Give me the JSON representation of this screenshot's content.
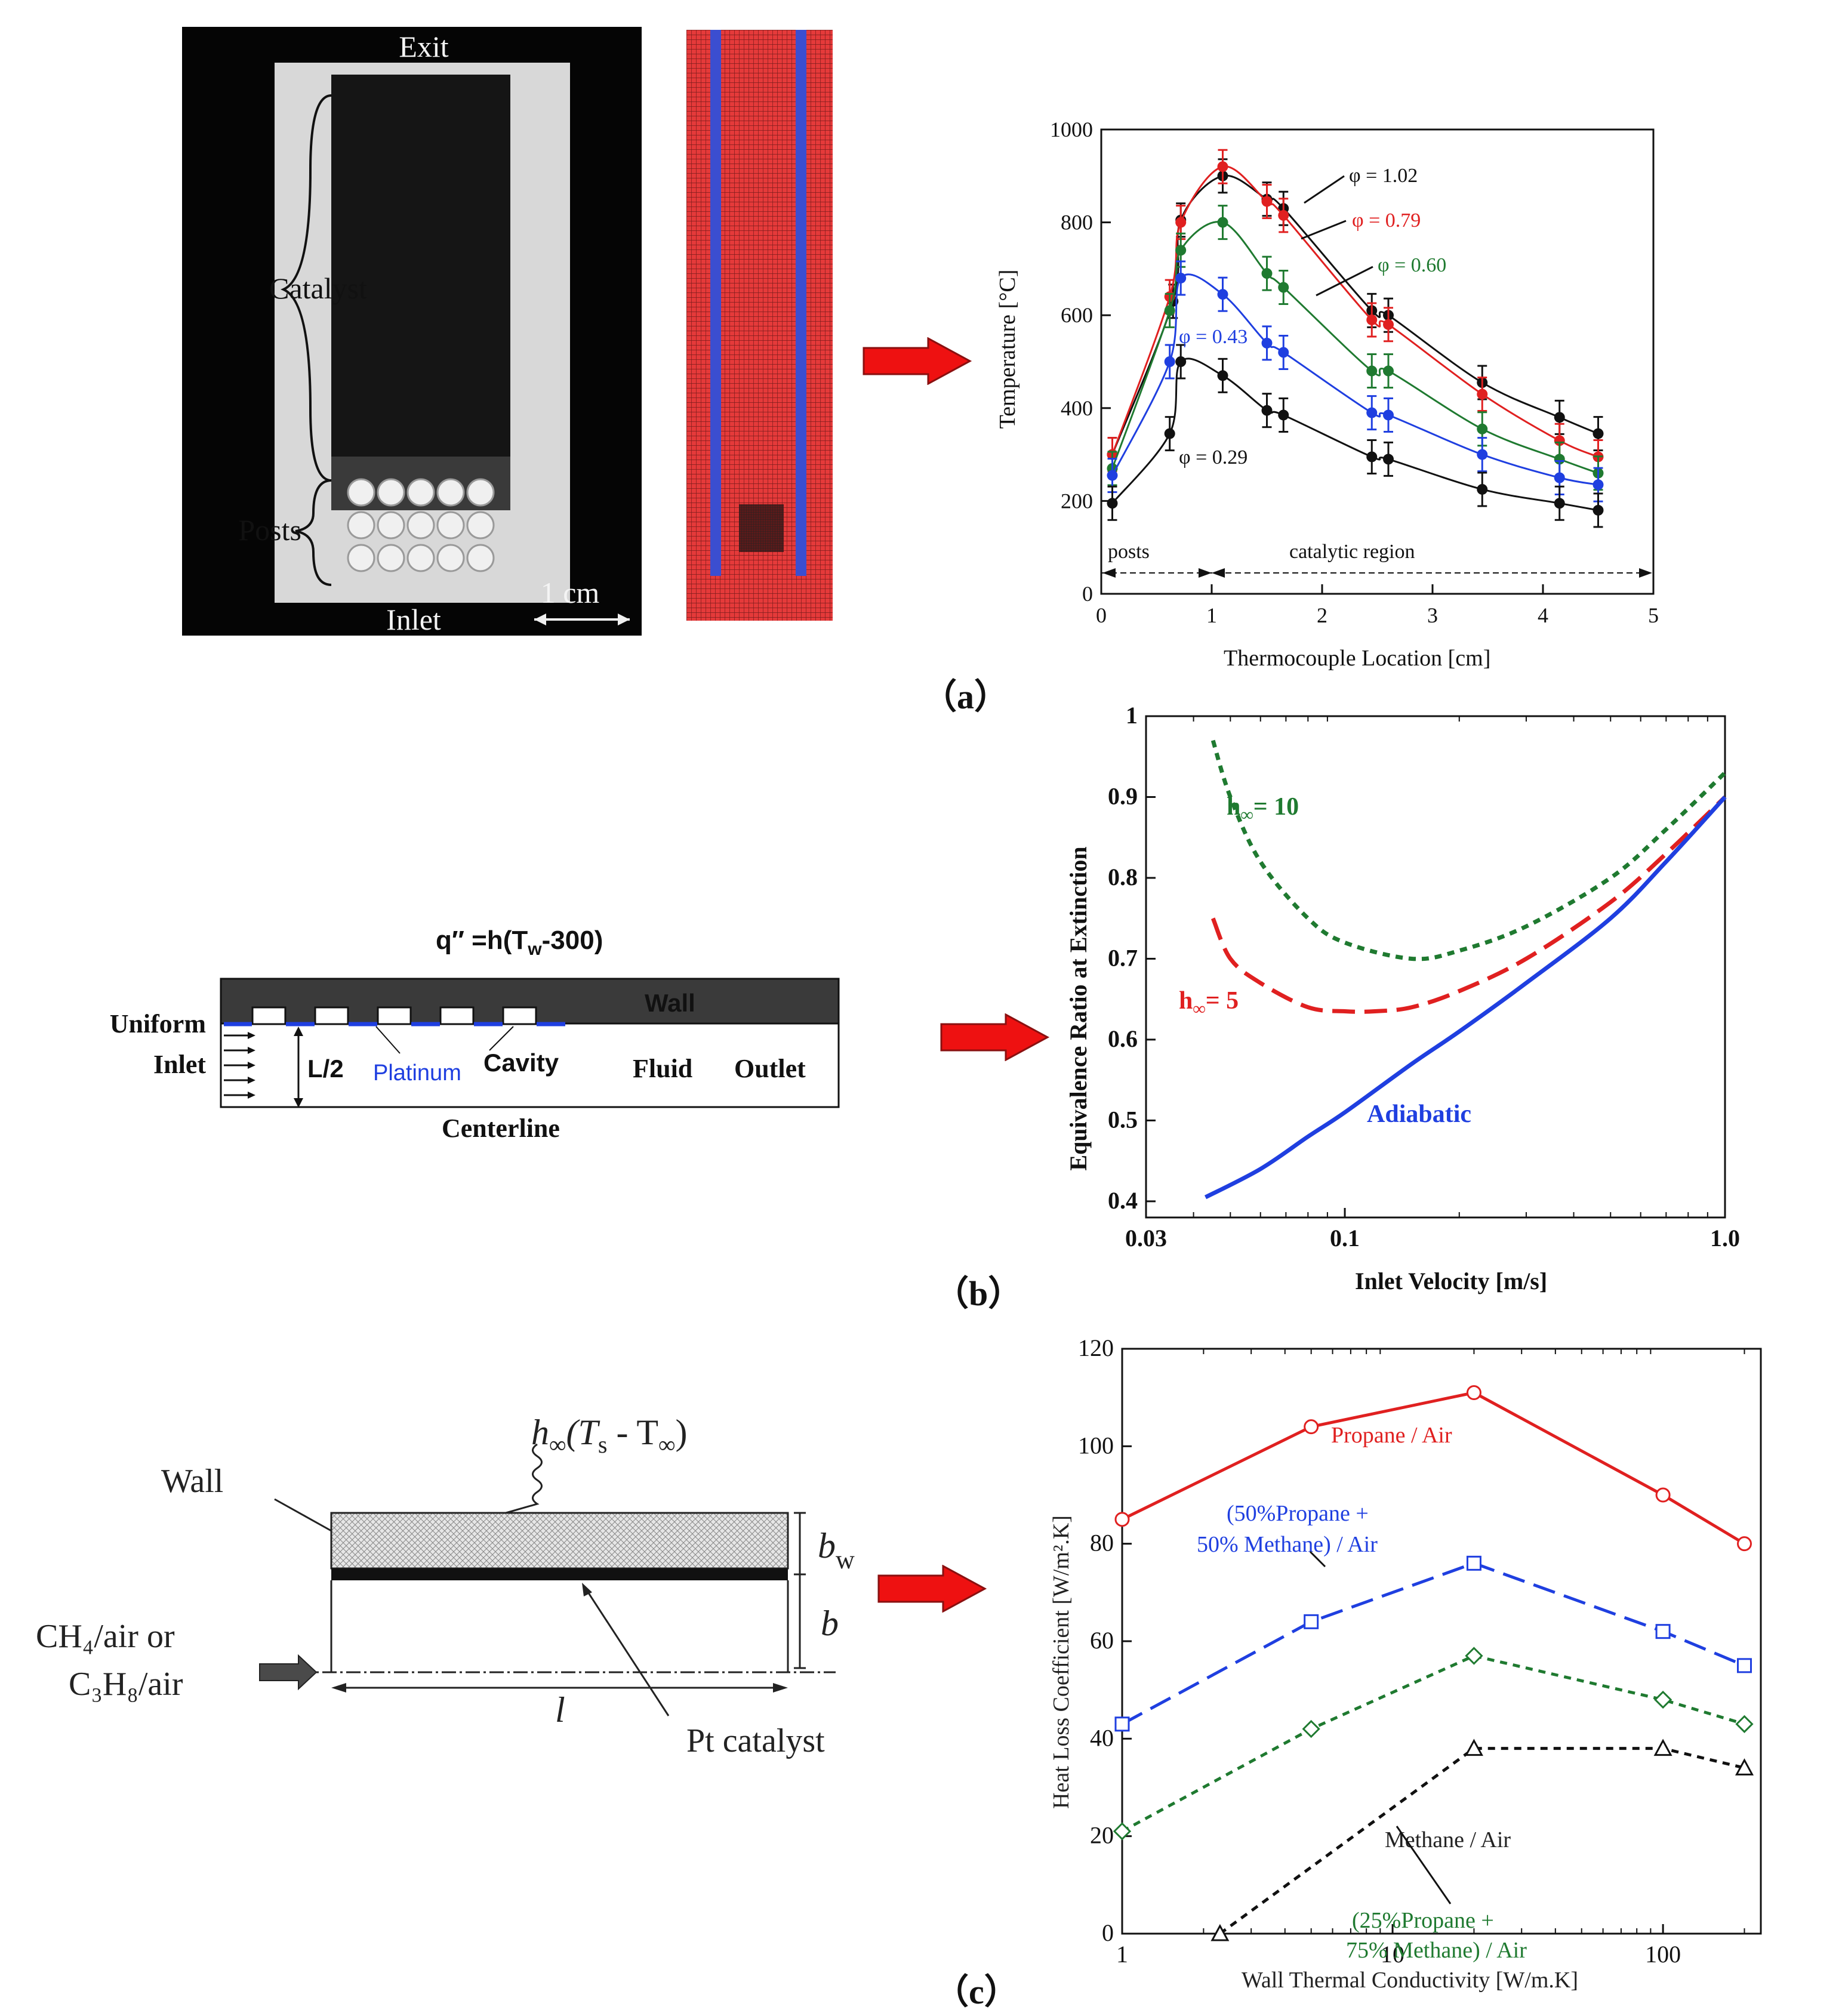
{
  "panel_a": {
    "photo": {
      "exit": "Exit",
      "catalyst": "Catalyst",
      "posts": "Posts",
      "inlet": "Inlet",
      "scale": "1 cm"
    },
    "caption": "（a）"
  },
  "panel_b": {
    "schematic": {
      "flux": "q″ =h(T",
      "flux_sub": "w",
      "flux_end": "-300)",
      "wall": "Wall",
      "uniform": "Uniform",
      "inlet": "Inlet",
      "half_width": "L/2",
      "platinum": "Platinum",
      "cavity": "Cavity",
      "fluid": "Fluid",
      "outlet": "Outlet",
      "centerline": "Centerline"
    },
    "caption": "（b）"
  },
  "panel_c": {
    "schematic": {
      "h_inf": "h",
      "h_inf_sub": "∞",
      "h_expr": "(T",
      "ts_sub": "s",
      "minus": " - T",
      "tinf_sub": "∞",
      "close": ")",
      "wall": "Wall",
      "bw": "b",
      "bw_sub": "w",
      "b": "b",
      "l": "l",
      "inlet_line1": "CH₄/air or",
      "inlet_line2": "C₃H₈/air",
      "pt": "Pt catalyst"
    },
    "caption": "（c）"
  },
  "colors": {
    "black": "#111111",
    "red": "#e02020",
    "green": "#1f7a30",
    "blue": "#1f3fe0",
    "arrow": "#ee1111"
  },
  "chart_data": [
    {
      "type": "line",
      "title": "",
      "xlabel": "Thermocouple Location [cm]",
      "ylabel": "Temperature [°C]",
      "xlim": [
        0,
        5
      ],
      "ylim": [
        0,
        1000
      ],
      "xticks": [
        "0",
        "1",
        "2",
        "3",
        "4",
        "5"
      ],
      "yticks": [
        "0",
        "200",
        "400",
        "600",
        "800",
        "1000"
      ],
      "region_labels": [
        "posts",
        "catalytic region"
      ],
      "series": [
        {
          "name": "φ = 1.02",
          "color": "#111111",
          "x": [
            0.1,
            0.65,
            0.72,
            1.1,
            1.5,
            1.65,
            2.45,
            2.6,
            3.45,
            4.15,
            4.5
          ],
          "y": [
            300,
            630,
            805,
            900,
            850,
            830,
            610,
            600,
            455,
            380,
            345
          ]
        },
        {
          "name": "φ = 0.79",
          "color": "#e02020",
          "x": [
            0.1,
            0.62,
            0.72,
            1.1,
            1.5,
            1.65,
            2.45,
            2.6,
            3.45,
            4.15,
            4.5
          ],
          "y": [
            300,
            640,
            800,
            920,
            845,
            815,
            590,
            580,
            430,
            330,
            295
          ]
        },
        {
          "name": "φ = 0.60",
          "color": "#1f7a30",
          "x": [
            0.1,
            0.62,
            0.72,
            1.1,
            1.5,
            1.65,
            2.45,
            2.6,
            3.45,
            4.15,
            4.5
          ],
          "y": [
            270,
            610,
            740,
            800,
            690,
            660,
            480,
            480,
            355,
            290,
            260
          ]
        },
        {
          "name": "φ = 0.43",
          "color": "#1f3fe0",
          "x": [
            0.1,
            0.62,
            0.72,
            1.1,
            1.5,
            1.65,
            2.45,
            2.6,
            3.45,
            4.15,
            4.5
          ],
          "y": [
            255,
            500,
            680,
            645,
            540,
            520,
            390,
            385,
            300,
            250,
            235
          ]
        },
        {
          "name": "φ = 0.29",
          "color": "#111111",
          "x": [
            0.1,
            0.62,
            0.72,
            1.1,
            1.5,
            1.65,
            2.45,
            2.6,
            3.45,
            4.15,
            4.5
          ],
          "y": [
            195,
            345,
            500,
            470,
            395,
            385,
            295,
            290,
            225,
            195,
            180
          ]
        }
      ]
    },
    {
      "type": "line",
      "xlabel": "Inlet Velocity [m/s]",
      "ylabel": "Equivalence Ratio at Extinction",
      "xscale": "log",
      "xlim": [
        0.03,
        1.0
      ],
      "ylim": [
        0.38,
        1.0
      ],
      "xticks": [
        "0.03",
        "0.1",
        "1.0"
      ],
      "yticks": [
        "0.4",
        "0.5",
        "0.6",
        "0.7",
        "0.8",
        "0.9",
        "1"
      ],
      "series": [
        {
          "name": "h∞= 10",
          "label_main": "h",
          "label_sub": "∞",
          "label_end": "= 10",
          "color": "#1f7a30",
          "style": "dotted",
          "x": [
            0.045,
            0.05,
            0.06,
            0.08,
            0.1,
            0.15,
            0.2,
            0.3,
            0.5,
            0.7,
            1.0
          ],
          "y": [
            0.97,
            0.9,
            0.82,
            0.75,
            0.72,
            0.7,
            0.71,
            0.74,
            0.8,
            0.86,
            0.93
          ]
        },
        {
          "name": "h∞= 5",
          "label_main": "h",
          "label_sub": "∞",
          "label_end": "= 5",
          "color": "#e02020",
          "style": "dashed",
          "x": [
            0.045,
            0.05,
            0.06,
            0.08,
            0.1,
            0.12,
            0.15,
            0.2,
            0.3,
            0.5,
            0.7,
            1.0
          ],
          "y": [
            0.75,
            0.7,
            0.67,
            0.64,
            0.635,
            0.635,
            0.64,
            0.66,
            0.7,
            0.77,
            0.83,
            0.9
          ]
        },
        {
          "name": "Adiabatic",
          "color": "#1f3fe0",
          "style": "solid",
          "x": [
            0.043,
            0.06,
            0.08,
            0.1,
            0.15,
            0.2,
            0.3,
            0.5,
            0.7,
            1.0
          ],
          "y": [
            0.405,
            0.44,
            0.48,
            0.51,
            0.57,
            0.61,
            0.67,
            0.75,
            0.82,
            0.9
          ]
        }
      ]
    },
    {
      "type": "line",
      "xlabel": "Wall Thermal Conductivity [W/m.K]",
      "ylabel": "Heat Loss Coefficient [W/m².K]",
      "xscale": "log",
      "xlim": [
        1,
        230
      ],
      "ylim": [
        0,
        120
      ],
      "xticks": [
        "1",
        "10",
        "100"
      ],
      "yticks": [
        "0",
        "20",
        "40",
        "60",
        "80",
        "100",
        "120"
      ],
      "series": [
        {
          "name": "Propane / Air",
          "color": "#e02020",
          "style": "solid",
          "marker": "circle",
          "x": [
            1,
            5,
            20,
            100,
            200
          ],
          "y": [
            85,
            104,
            111,
            90,
            80
          ]
        },
        {
          "name": "(50%Propane + 50% Methane) / Air",
          "label_lines": [
            "(50%Propane +",
            "50% Methane) / Air"
          ],
          "color": "#1f3fe0",
          "style": "dashed",
          "marker": "square",
          "x": [
            1,
            5,
            20,
            100,
            200
          ],
          "y": [
            43,
            64,
            76,
            62,
            55
          ]
        },
        {
          "name": "(25%Propane + 75% Methane) / Air",
          "label_lines": [
            "(25%Propane +",
            "75% Methane) / Air"
          ],
          "color": "#1f7a30",
          "style": "dotted",
          "marker": "diamond",
          "x": [
            1,
            5,
            20,
            100,
            200
          ],
          "y": [
            21,
            42,
            57,
            48,
            43
          ]
        },
        {
          "name": "Methane / Air",
          "color": "#111111",
          "style": "dotted",
          "marker": "triangle",
          "x": [
            2.3,
            20,
            100,
            200
          ],
          "y": [
            0,
            38,
            38,
            34
          ]
        }
      ]
    }
  ]
}
